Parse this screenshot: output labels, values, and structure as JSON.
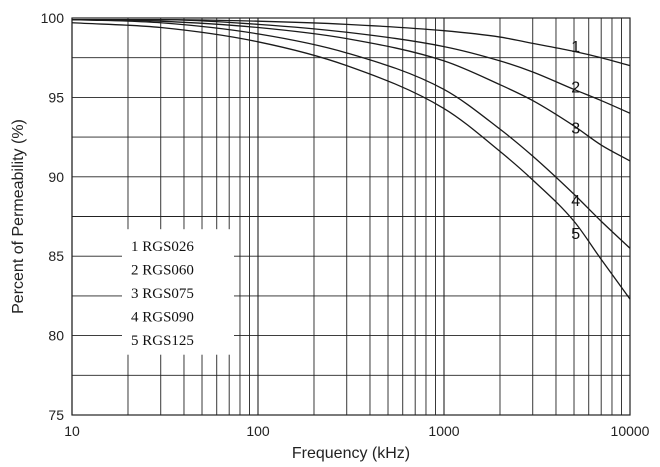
{
  "chart_data": {
    "type": "line",
    "title": "",
    "xlabel": "Frequency (kHz)",
    "ylabel": "Percent of Permeability (%)",
    "x_scale": "log",
    "xlim": [
      10,
      10000
    ],
    "ylim": [
      75,
      100
    ],
    "x_ticks": [
      "10",
      "100",
      "1000",
      "10000"
    ],
    "y_ticks": [
      "75",
      "80",
      "85",
      "90",
      "95",
      "100"
    ],
    "grid": true,
    "legend_placement": "center-left",
    "series": [
      {
        "name": "RGS026",
        "label": "1",
        "x": [
          10,
          30,
          100,
          300,
          1000,
          2000,
          3000,
          5000,
          7000,
          10000
        ],
        "y": [
          99.9,
          99.9,
          99.8,
          99.6,
          99.2,
          98.8,
          98.4,
          97.9,
          97.5,
          97.0
        ]
      },
      {
        "name": "RGS060",
        "label": "2",
        "x": [
          10,
          30,
          100,
          300,
          1000,
          2000,
          3000,
          5000,
          7000,
          10000
        ],
        "y": [
          99.9,
          99.9,
          99.6,
          99.1,
          98.2,
          97.3,
          96.6,
          95.5,
          94.8,
          94.0
        ]
      },
      {
        "name": "RGS075",
        "label": "3",
        "x": [
          10,
          30,
          100,
          300,
          1000,
          2000,
          3000,
          5000,
          7000,
          10000
        ],
        "y": [
          99.9,
          99.8,
          99.4,
          98.7,
          97.3,
          95.8,
          94.8,
          93.2,
          92.0,
          91.0
        ]
      },
      {
        "name": "RGS090",
        "label": "4",
        "x": [
          10,
          30,
          100,
          300,
          1000,
          2000,
          3000,
          5000,
          7000,
          10000
        ],
        "y": [
          99.9,
          99.7,
          99.0,
          97.8,
          95.5,
          93.0,
          91.3,
          88.9,
          87.2,
          85.5
        ]
      },
      {
        "name": "RGS125",
        "label": "5",
        "x": [
          10,
          30,
          100,
          300,
          1000,
          2000,
          3000,
          5000,
          7000,
          10000
        ],
        "y": [
          99.7,
          99.4,
          98.5,
          97.0,
          94.3,
          91.6,
          89.8,
          87.2,
          84.8,
          82.3
        ]
      }
    ],
    "legend": [
      "1 RGS026",
      "2 RGS060",
      "3 RGS075",
      "4 RGS090",
      "5 RGS125"
    ]
  }
}
